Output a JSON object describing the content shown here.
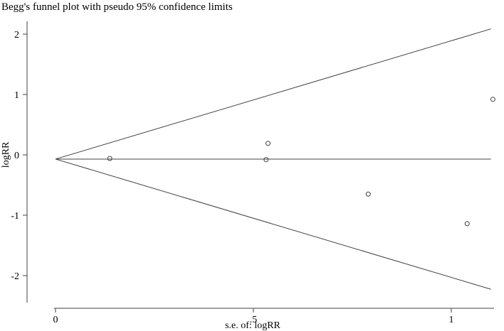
{
  "chart_data": {
    "type": "scatter",
    "title": "Begg's funnel plot with pseudo 95% confidence limits",
    "xlabel": "s.e. of: logRR",
    "ylabel": "logRR",
    "xlim": [
      0,
      1.1
    ],
    "ylim": [
      -2.3,
      2.2
    ],
    "x_ticks": [
      {
        "value": 0,
        "label": "0"
      },
      {
        "value": 0.5,
        "label": ".5"
      },
      {
        "value": 1,
        "label": "1"
      }
    ],
    "y_ticks": [
      {
        "value": 2,
        "label": "2"
      },
      {
        "value": 1,
        "label": "1"
      },
      {
        "value": 0,
        "label": "0"
      },
      {
        "value": -1,
        "label": "-1"
      },
      {
        "value": -2,
        "label": "-2"
      }
    ],
    "pooled_estimate": -0.07,
    "confidence_z": 1.96,
    "funnel_se_max": 1.1,
    "points": [
      {
        "x": 0.137,
        "y": -0.06
      },
      {
        "x": 0.537,
        "y": 0.19
      },
      {
        "x": 0.532,
        "y": -0.08
      },
      {
        "x": 0.79,
        "y": -0.65
      },
      {
        "x": 1.04,
        "y": -1.14
      },
      {
        "x": 1.105,
        "y": 0.92
      }
    ],
    "grid": false,
    "legend": "none",
    "marker": "hollow-circle",
    "line_color": "#404040",
    "point_color": "#404040"
  }
}
